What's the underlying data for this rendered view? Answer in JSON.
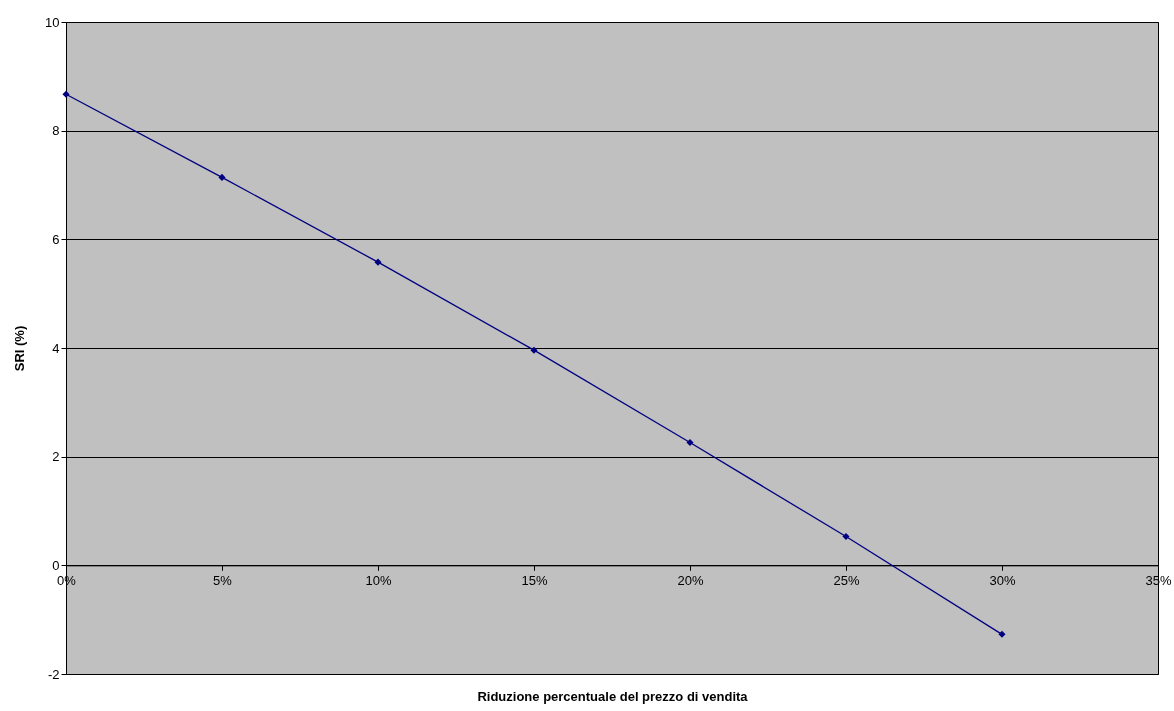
{
  "chart_data": {
    "type": "line",
    "xlabel": "Riduzione percentuale del prezzo di vendita",
    "ylabel": "SRI (%)",
    "x": [
      0,
      5,
      10,
      15,
      20,
      25,
      30
    ],
    "series": [
      {
        "color": "#000080",
        "values": [
          8.67,
          7.14,
          5.58,
          3.96,
          2.26,
          0.53,
          -1.27
        ]
      }
    ],
    "xlim": [
      0,
      35
    ],
    "xticks": [
      {
        "value": 0,
        "label": "0%"
      },
      {
        "value": 5,
        "label": "5%"
      },
      {
        "value": 10,
        "label": "10%"
      },
      {
        "value": 15,
        "label": "15%"
      },
      {
        "value": 20,
        "label": "20%"
      },
      {
        "value": 25,
        "label": "25%"
      },
      {
        "value": 30,
        "label": "30%"
      },
      {
        "value": 35,
        "label": "35%"
      }
    ],
    "ylim": [
      -2,
      10
    ],
    "yticks": [
      -2,
      0,
      2,
      4,
      6,
      8,
      10
    ],
    "grid": "y",
    "marker": "diamond",
    "line_style": "solid"
  }
}
